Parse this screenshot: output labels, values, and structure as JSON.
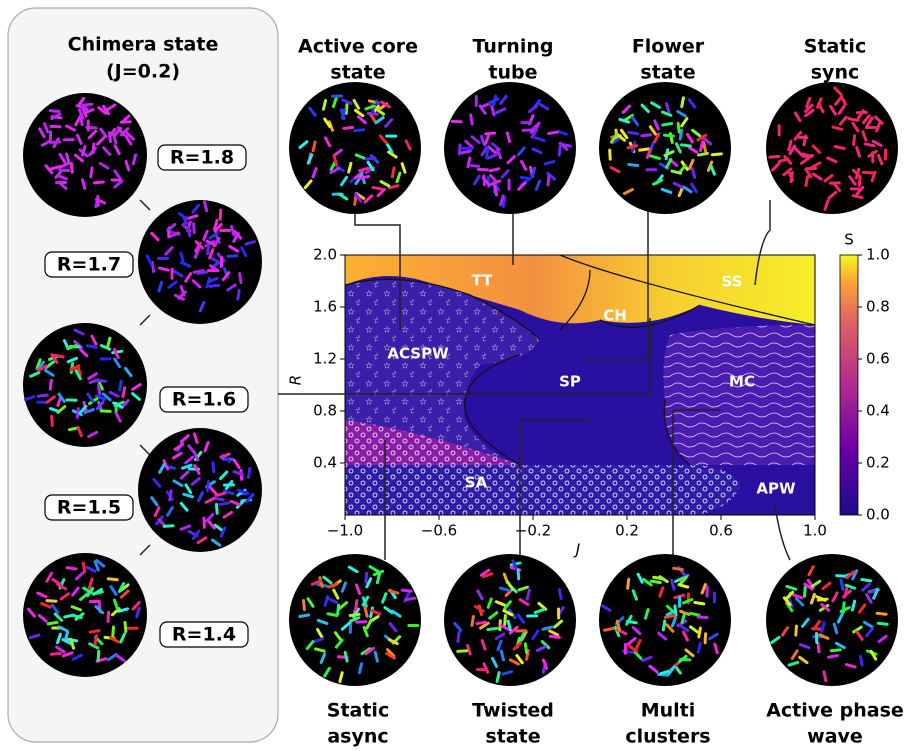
{
  "panel": {
    "title": [
      "Chimera state",
      "(J=0.2)"
    ],
    "states": [
      "R=1.8",
      "R=1.7",
      "R=1.6",
      "R=1.5",
      "R=1.4"
    ]
  },
  "top_states": [
    [
      "Active core",
      "state"
    ],
    [
      "Turning",
      "tube"
    ],
    [
      "Flower",
      "state"
    ],
    [
      "Static",
      "sync"
    ]
  ],
  "bottom_states": [
    [
      "Static",
      "async"
    ],
    [
      "Twisted",
      "state"
    ],
    [
      "Multi",
      "clusters"
    ],
    [
      "Active phase",
      "wave"
    ]
  ],
  "diagram": {
    "xlabel": "J",
    "ylabel": "R",
    "xlim": [
      -1,
      1
    ],
    "ylim": [
      0,
      2
    ],
    "xticks": [
      {
        "value": -1,
        "label": "−1.0"
      },
      {
        "value": -0.6,
        "label": "−0.6"
      },
      {
        "value": -0.2,
        "label": "−0.2"
      },
      0.2,
      0.6,
      {
        "value": 1,
        "label": "1.0"
      }
    ],
    "yticks": [
      0.4,
      0.8,
      {
        "value": 1.2,
        "label": "1.2"
      },
      {
        "value": 1.6,
        "label": "1.6"
      },
      {
        "value": 2,
        "label": "2.0"
      }
    ],
    "regions": [
      "TT",
      "CH",
      "SS",
      "ACSPW",
      "SP",
      "MC",
      "SA",
      "APW"
    ],
    "colorbar": {
      "label": "S",
      "lim": [
        0,
        1
      ],
      "ticks": [
        {
          "value": 0,
          "label": "0.0"
        },
        0.2,
        0.4,
        0.6,
        0.8,
        {
          "value": 1,
          "label": "1.0"
        }
      ]
    }
  }
}
